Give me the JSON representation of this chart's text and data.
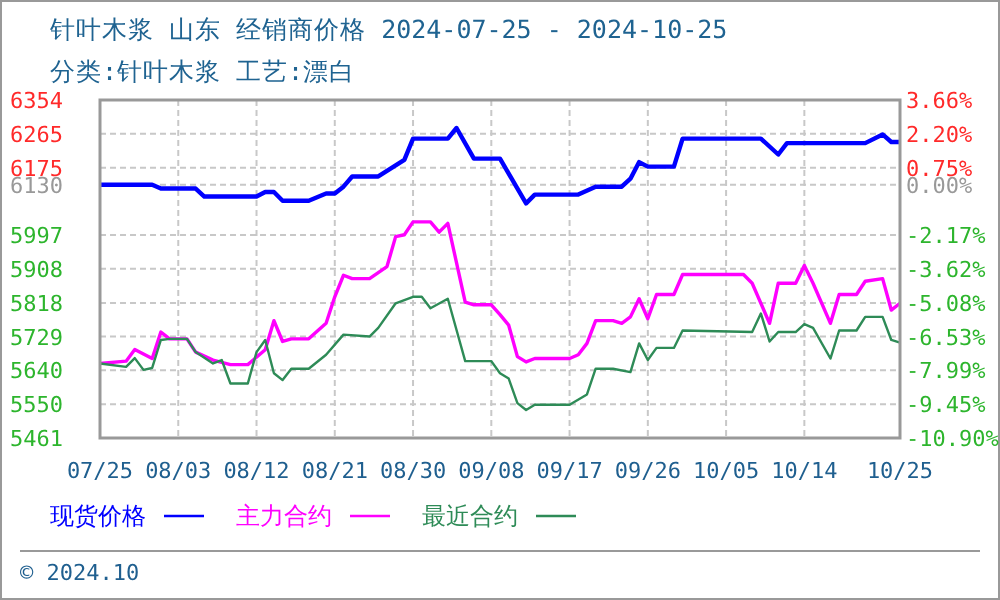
{
  "chart_data": {
    "type": "line",
    "title": "针叶木浆 山东 经销商价格 2024-07-25 - 2024-10-25",
    "subtitle": "分类:针叶木浆 工艺:漂白",
    "xlim": [
      "2024-07-25",
      "2024-10-25"
    ],
    "xticks": [
      {
        "value": "2024-07-25",
        "label": "07/25"
      },
      {
        "value": "2024-08-03",
        "label": "08/03"
      },
      {
        "value": "2024-08-12",
        "label": "08/12"
      },
      {
        "value": "2024-08-21",
        "label": "08/21"
      },
      {
        "value": "2024-08-30",
        "label": "08/30"
      },
      {
        "value": "2024-09-08",
        "label": "09/08"
      },
      {
        "value": "2024-09-17",
        "label": "09/17"
      },
      {
        "value": "2024-09-26",
        "label": "09/26"
      },
      {
        "value": "2024-10-05",
        "label": "10/05"
      },
      {
        "value": "2024-10-14",
        "label": "10/14"
      },
      {
        "value": "2024-10-25",
        "label": "10/25"
      }
    ],
    "ylim": [
      5461,
      6354
    ],
    "yticks": [
      6354,
      6265,
      6175,
      6130,
      5997,
      5908,
      5818,
      5729,
      5640,
      5550,
      5461
    ],
    "y2lim": [
      -10.9,
      3.66
    ],
    "y2ticks": [
      {
        "value": 3.66,
        "label": "3.66%"
      },
      {
        "value": 2.2,
        "label": "2.20%"
      },
      {
        "value": 0.75,
        "label": "0.75%"
      },
      {
        "value": 0,
        "label": "0.00%"
      },
      {
        "value": -2.17,
        "label": "-2.17%"
      },
      {
        "value": -3.62,
        "label": "-3.62%"
      },
      {
        "value": -5.08,
        "label": "-5.08%"
      },
      {
        "value": -6.53,
        "label": "-6.53%"
      },
      {
        "value": -7.99,
        "label": "-7.99%"
      },
      {
        "value": -9.45,
        "label": "-9.45%"
      },
      {
        "value": -10.9,
        "label": "-10.90%"
      }
    ],
    "grid": true,
    "legend": "bottom",
    "series": [
      {
        "name": "现货价格",
        "color": "#0000ff",
        "x": [
          "2024-07-25",
          "2024-07-31",
          "2024-08-01",
          "2024-08-05",
          "2024-08-06",
          "2024-08-12",
          "2024-08-13",
          "2024-08-14",
          "2024-08-15",
          "2024-08-18",
          "2024-08-20",
          "2024-08-21",
          "2024-08-22",
          "2024-08-23",
          "2024-08-26",
          "2024-08-29",
          "2024-08-30",
          "2024-09-03",
          "2024-09-04",
          "2024-09-06",
          "2024-09-09",
          "2024-09-12",
          "2024-09-13",
          "2024-09-18",
          "2024-09-20",
          "2024-09-23",
          "2024-09-24",
          "2024-09-25",
          "2024-09-26",
          "2024-09-29",
          "2024-09-30",
          "2024-10-09",
          "2024-10-11",
          "2024-10-12",
          "2024-10-21",
          "2024-10-23",
          "2024-10-24",
          "2024-10-25"
        ],
        "values": [
          6130,
          6130,
          6120,
          6120,
          6099,
          6099,
          6111,
          6111,
          6088,
          6088,
          6107,
          6107,
          6125,
          6152,
          6152,
          6196,
          6252,
          6252,
          6280,
          6199,
          6199,
          6081,
          6104,
          6104,
          6125,
          6125,
          6146,
          6190,
          6178,
          6178,
          6252,
          6252,
          6210,
          6240,
          6240,
          6263,
          6243,
          6243
        ]
      },
      {
        "name": "主力合约",
        "color": "#ff00ff",
        "x": [
          "2024-07-25",
          "2024-07-28",
          "2024-07-29",
          "2024-07-31",
          "2024-08-01",
          "2024-08-02",
          "2024-08-04",
          "2024-08-05",
          "2024-08-07",
          "2024-08-09",
          "2024-08-11",
          "2024-08-13",
          "2024-08-14",
          "2024-08-15",
          "2024-08-16",
          "2024-08-18",
          "2024-08-20",
          "2024-08-21",
          "2024-08-22",
          "2024-08-23",
          "2024-08-25",
          "2024-08-27",
          "2024-08-28",
          "2024-08-29",
          "2024-08-30",
          "2024-09-01",
          "2024-09-02",
          "2024-09-03",
          "2024-09-05",
          "2024-09-06",
          "2024-09-08",
          "2024-09-09",
          "2024-09-10",
          "2024-09-11",
          "2024-09-12",
          "2024-09-13",
          "2024-09-17",
          "2024-09-18",
          "2024-09-19",
          "2024-09-20",
          "2024-09-22",
          "2024-09-23",
          "2024-09-24",
          "2024-09-25",
          "2024-09-26",
          "2024-09-27",
          "2024-09-29",
          "2024-09-30",
          "2024-10-07",
          "2024-10-08",
          "2024-10-10",
          "2024-10-11",
          "2024-10-13",
          "2024-10-14",
          "2024-10-15",
          "2024-10-17",
          "2024-10-18",
          "2024-10-20",
          "2024-10-21",
          "2024-10-23",
          "2024-10-24",
          "2024-10-25"
        ],
        "values": [
          5658,
          5664,
          5695,
          5671,
          5741,
          5723,
          5723,
          5688,
          5667,
          5655,
          5655,
          5694,
          5771,
          5716,
          5723,
          5723,
          5764,
          5834,
          5891,
          5882,
          5882,
          5914,
          5993,
          5998,
          6032,
          6032,
          6005,
          6028,
          5820,
          5813,
          5813,
          5787,
          5759,
          5676,
          5662,
          5671,
          5671,
          5681,
          5711,
          5771,
          5771,
          5764,
          5781,
          5829,
          5776,
          5840,
          5840,
          5893,
          5893,
          5870,
          5764,
          5870,
          5870,
          5917,
          5870,
          5764,
          5840,
          5840,
          5875,
          5882,
          5799,
          5817
        ]
      },
      {
        "name": "最近合约",
        "color": "#2e8b57",
        "x": [
          "2024-07-25",
          "2024-07-28",
          "2024-07-29",
          "2024-07-30",
          "2024-07-31",
          "2024-08-01",
          "2024-08-02",
          "2024-08-04",
          "2024-08-05",
          "2024-08-07",
          "2024-08-08",
          "2024-08-09",
          "2024-08-11",
          "2024-08-12",
          "2024-08-13",
          "2024-08-14",
          "2024-08-15",
          "2024-08-16",
          "2024-08-18",
          "2024-08-20",
          "2024-08-22",
          "2024-08-25",
          "2024-08-26",
          "2024-08-28",
          "2024-08-30",
          "2024-08-31",
          "2024-09-01",
          "2024-09-03",
          "2024-09-05",
          "2024-09-08",
          "2024-09-09",
          "2024-09-10",
          "2024-09-11",
          "2024-09-12",
          "2024-09-13",
          "2024-09-17",
          "2024-09-19",
          "2024-09-20",
          "2024-09-22",
          "2024-09-24",
          "2024-09-25",
          "2024-09-26",
          "2024-09-27",
          "2024-09-29",
          "2024-09-30",
          "2024-10-08",
          "2024-10-09",
          "2024-10-10",
          "2024-10-11",
          "2024-10-13",
          "2024-10-14",
          "2024-10-15",
          "2024-10-17",
          "2024-10-18",
          "2024-10-20",
          "2024-10-21",
          "2024-10-23",
          "2024-10-24",
          "2024-10-25"
        ],
        "values": [
          5658,
          5649,
          5672,
          5641,
          5646,
          5720,
          5723,
          5723,
          5688,
          5658,
          5667,
          5605,
          5605,
          5688,
          5720,
          5632,
          5614,
          5644,
          5644,
          5681,
          5734,
          5729,
          5752,
          5817,
          5834,
          5834,
          5804,
          5829,
          5664,
          5664,
          5632,
          5618,
          5553,
          5535,
          5549,
          5549,
          5576,
          5644,
          5644,
          5635,
          5711,
          5667,
          5699,
          5699,
          5745,
          5741,
          5790,
          5716,
          5741,
          5741,
          5762,
          5752,
          5671,
          5745,
          5745,
          5781,
          5781,
          5720,
          5713
        ]
      }
    ],
    "annotations": [
      "© 2024.10"
    ]
  }
}
